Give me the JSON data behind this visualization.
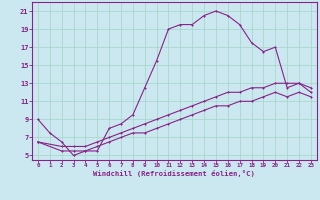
{
  "xlabel": "Windchill (Refroidissement éolien,°C)",
  "bg_color": "#cbe8f0",
  "grid_color": "#a8d8cc",
  "line_color": "#882288",
  "xlim": [
    -0.5,
    23.5
  ],
  "ylim": [
    4.5,
    22
  ],
  "xticks": [
    0,
    1,
    2,
    3,
    4,
    5,
    6,
    7,
    8,
    9,
    10,
    11,
    12,
    13,
    14,
    15,
    16,
    17,
    18,
    19,
    20,
    21,
    22,
    23
  ],
  "yticks": [
    5,
    7,
    9,
    11,
    13,
    15,
    17,
    19,
    21
  ],
  "curve1_x": [
    0,
    1,
    2,
    3,
    4,
    5,
    6,
    7,
    8,
    9,
    10,
    11,
    12,
    13,
    14,
    15,
    16,
    17,
    18,
    19,
    20,
    21,
    22,
    23
  ],
  "curve1_y": [
    9,
    7.5,
    6.5,
    5,
    5.5,
    5.5,
    8,
    8.5,
    9.5,
    12.5,
    15.5,
    19.0,
    19.5,
    19.5,
    20.5,
    21,
    20.5,
    19.5,
    17.5,
    16.5,
    17,
    12.5,
    13,
    12
  ],
  "curve2_x": [
    0,
    2,
    3,
    4,
    5,
    6,
    7,
    8,
    9,
    10,
    11,
    12,
    13,
    14,
    15,
    16,
    17,
    18,
    19,
    20,
    21,
    22,
    23
  ],
  "curve2_y": [
    6.5,
    6.0,
    6.0,
    6.0,
    6.5,
    7,
    7.5,
    8.0,
    8.5,
    9.0,
    9.5,
    10.0,
    10.5,
    11.0,
    11.5,
    12.0,
    12.0,
    12.5,
    12.5,
    13.0,
    13.0,
    13.0,
    12.5
  ],
  "curve3_x": [
    0,
    2,
    3,
    4,
    5,
    6,
    7,
    8,
    9,
    10,
    11,
    12,
    13,
    14,
    15,
    16,
    17,
    18,
    19,
    20,
    21,
    22,
    23
  ],
  "curve3_y": [
    6.5,
    5.5,
    5.5,
    5.5,
    6.0,
    6.5,
    7.0,
    7.5,
    7.5,
    8.0,
    8.5,
    9.0,
    9.5,
    10.0,
    10.5,
    10.5,
    11.0,
    11.0,
    11.5,
    12.0,
    11.5,
    12.0,
    11.5
  ]
}
